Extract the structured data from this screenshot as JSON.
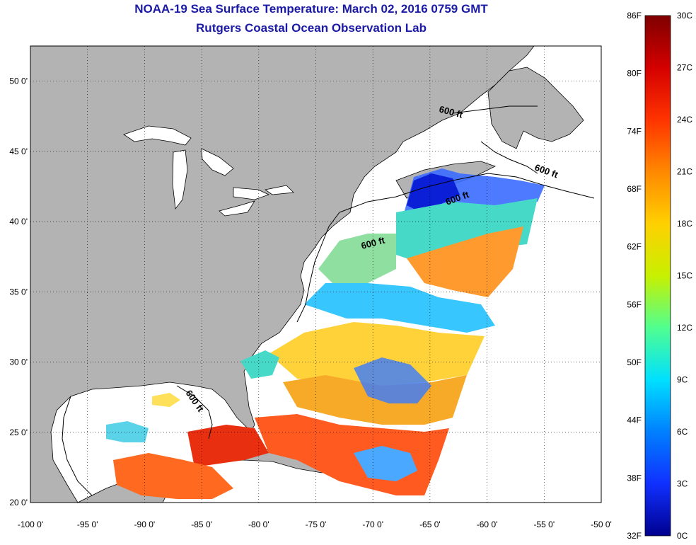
{
  "header": {
    "title": "NOAA-19 Sea Surface Temperature:  March 02, 2016 0759 GMT",
    "subtitle": "Rutgers Coastal Ocean Observation Lab"
  },
  "map": {
    "lon_range": [
      -100,
      -50
    ],
    "lat_range": [
      20,
      52.5
    ],
    "x_ticks": [
      "-100 0'",
      "-95 0'",
      "-90 0'",
      "-85 0'",
      "-80 0'",
      "-75 0'",
      "-70 0'",
      "-65 0'",
      "-60 0'",
      "-55 0'",
      "-50 0'"
    ],
    "y_ticks": [
      "20 0'",
      "25 0'",
      "30 0'",
      "35 0'",
      "40 0'",
      "45 0'",
      "50 0'"
    ],
    "grid": true,
    "land_color": "#b3b3b3",
    "no_data_color": "#ffffff",
    "contour_labels": [
      "600 ft",
      "600 ft",
      "600 ft",
      "600 ft",
      "600 ft"
    ]
  },
  "colorbar": {
    "fahrenheit": [
      "86F",
      "80F",
      "74F",
      "68F",
      "62F",
      "56F",
      "50F",
      "44F",
      "38F",
      "32F"
    ],
    "celsius": [
      "30C",
      "27C",
      "24C",
      "21C",
      "18C",
      "15C",
      "12C",
      "9C",
      "6C",
      "3C",
      "0C"
    ],
    "colors": [
      "#7f0000",
      "#d40000",
      "#ff3300",
      "#ff8800",
      "#ffd000",
      "#c8f000",
      "#50ff90",
      "#00e0ff",
      "#0080ff",
      "#1030ff",
      "#00008f"
    ]
  }
}
